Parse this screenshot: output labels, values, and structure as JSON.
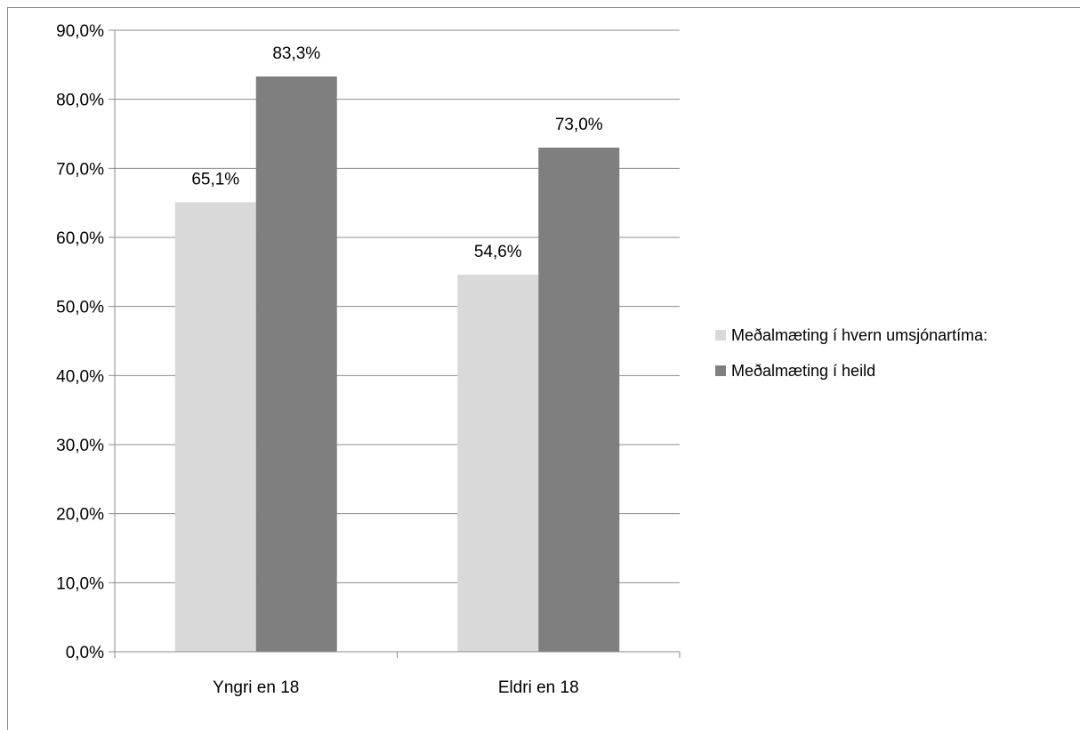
{
  "chart_data": {
    "type": "bar",
    "categories": [
      "Yngri en 18",
      "Eldri en 18"
    ],
    "series": [
      {
        "name": "Meðalmæting í hvern umsjónartíma:",
        "values": [
          65.1,
          54.6
        ],
        "labels": [
          "65,1%",
          "54,6%"
        ],
        "color": "#d9d9d9"
      },
      {
        "name": "Meðalmæting í heild",
        "values": [
          83.3,
          73.0
        ],
        "labels": [
          "83,3%",
          "73,0%"
        ],
        "color": "#7f7f7f"
      }
    ],
    "y_ticks": [
      "0,0%",
      "10,0%",
      "20,0%",
      "30,0%",
      "40,0%",
      "50,0%",
      "60,0%",
      "70,0%",
      "80,0%",
      "90,0%"
    ],
    "ylim": [
      0,
      90
    ],
    "grid": true,
    "legend_position": "right",
    "title": "",
    "xlabel": "",
    "ylabel": ""
  }
}
